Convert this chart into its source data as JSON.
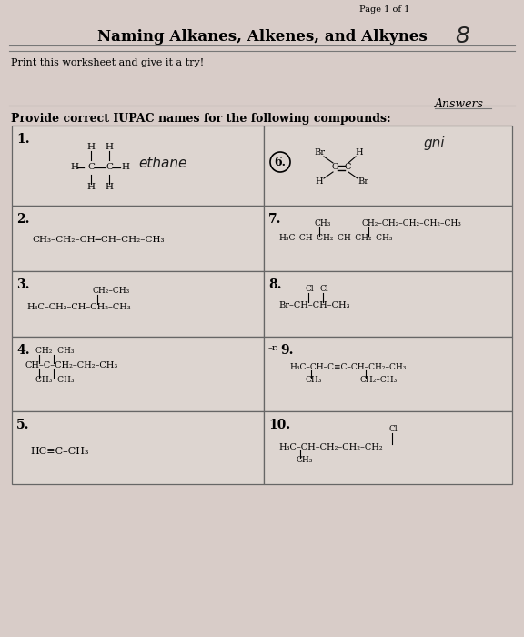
{
  "bg_color": "#d8ccc8",
  "page_color": "#e8ddd8",
  "title": "Naming Alkanes, Alkenes, and Alkynes",
  "page_label": "Page 1 of 1",
  "score": "8",
  "subtitle": "Print this worksheet and give it a try!",
  "answers_label": "Answers",
  "instruction": "Provide correct IUPAC names for the following compounds:",
  "cell_bg": "#ddd5d0",
  "cell_border": "#888888"
}
